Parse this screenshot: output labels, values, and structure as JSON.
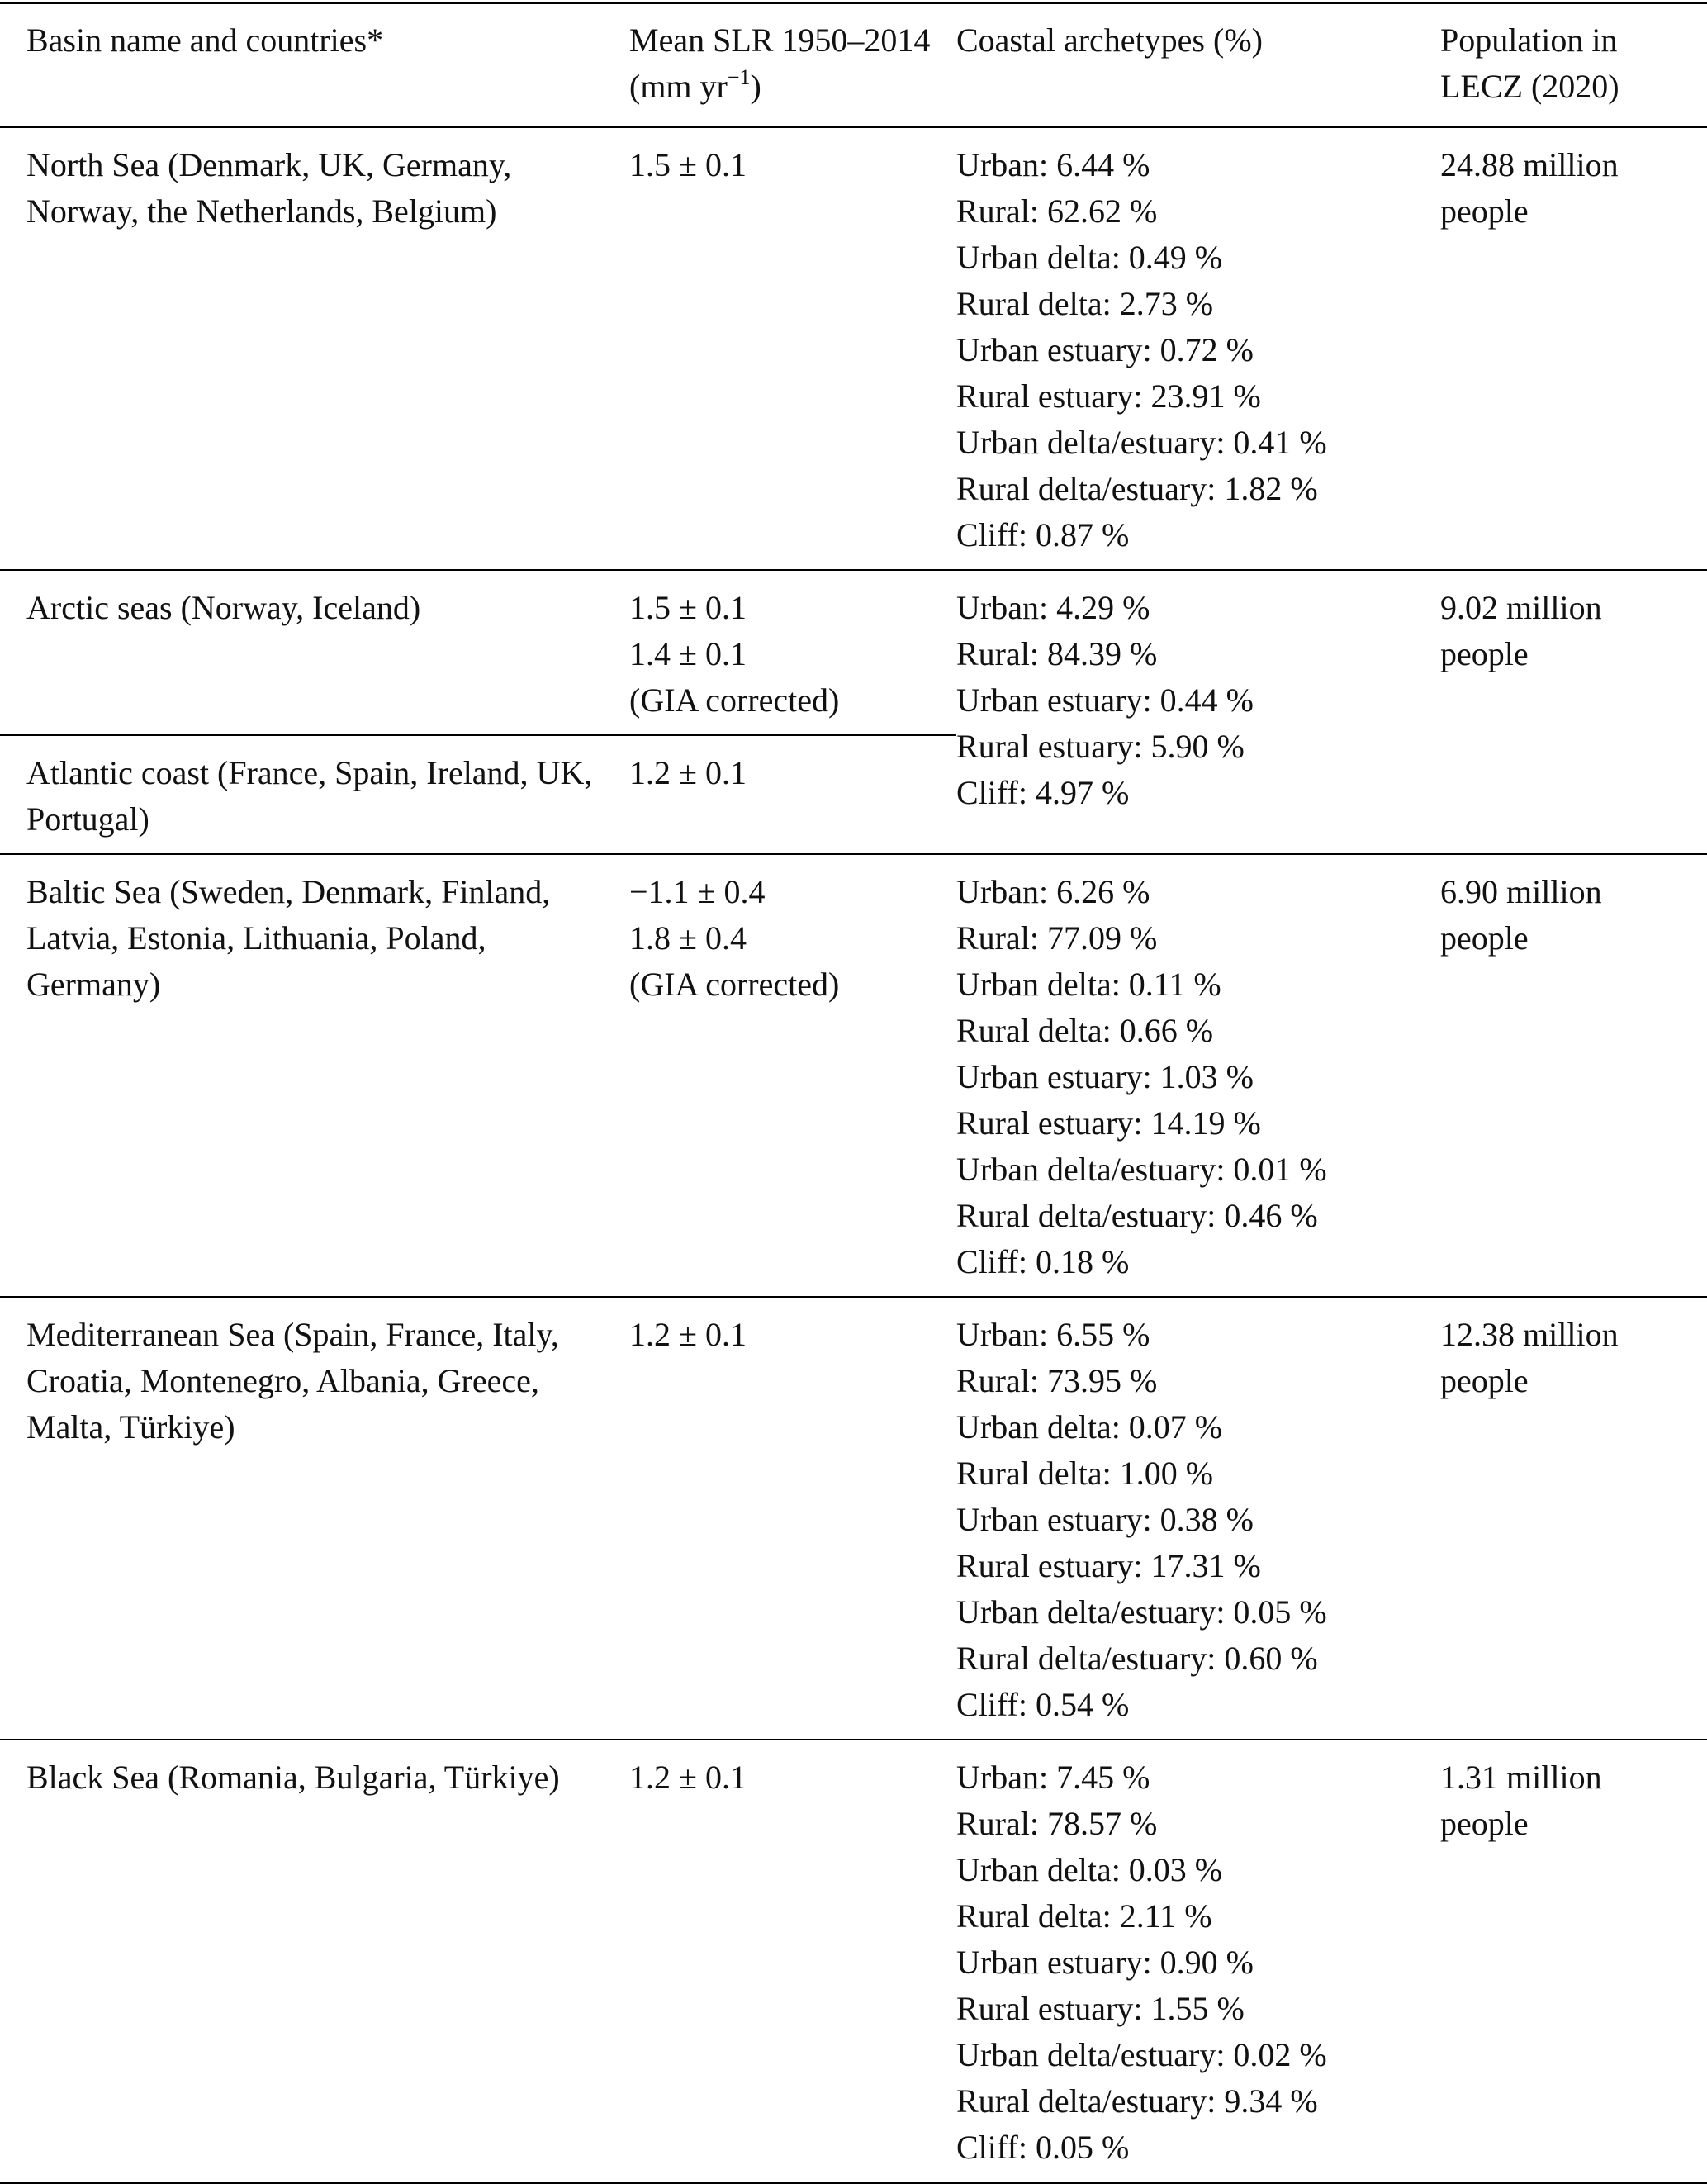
{
  "table": {
    "header": {
      "basin": "Basin name and countries*",
      "slr": {
        "text": "Mean SLR 1950–2014 (mm yr",
        "sup": "−1",
        "tail": ")"
      },
      "archetypes": "Coastal archetypes (%)",
      "population": "Population in LECZ (2020)"
    },
    "rows": [
      {
        "basin": "North Sea (Denmark, UK, Germany, Norway, the Netherlands, Belgium)",
        "slr": [
          "1.5 ± 0.1"
        ],
        "archetypes": [
          "Urban: 6.44 %",
          "Rural: 62.62 %",
          "Urban delta: 0.49 %",
          "Rural delta: 2.73 %",
          "Urban estuary: 0.72 %",
          "Rural estuary: 23.91 %",
          "Urban delta/estuary: 0.41 %",
          "Rural delta/estuary: 1.82 %",
          "Cliff: 0.87 %"
        ],
        "population": "24.88 million people"
      },
      {
        "basin": "Arctic seas (Norway, Iceland)",
        "slr": [
          "1.5 ± 0.1",
          "1.4 ± 0.1",
          "(GIA corrected)"
        ],
        "archetypes": [
          "Urban: 4.29 %",
          "Rural: 84.39 %",
          "Urban estuary: 0.44 %",
          "Rural estuary: 5.90 %",
          "Cliff: 4.97 %"
        ],
        "population": "9.02 million people"
      },
      {
        "basin": "Atlantic coast (France, Spain, Ireland, UK, Portugal)",
        "slr": [
          "1.2 ± 0.1"
        ]
      },
      {
        "basin": "Baltic Sea (Sweden, Denmark, Finland, Latvia, Estonia, Lithuania, Poland, Germany)",
        "slr": [
          "−1.1 ± 0.4",
          "1.8 ± 0.4",
          "(GIA corrected)"
        ],
        "archetypes": [
          "Urban: 6.26 %",
          "Rural: 77.09 %",
          "Urban delta: 0.11 %",
          "Rural delta: 0.66 %",
          "Urban estuary: 1.03 %",
          "Rural estuary: 14.19 %",
          "Urban delta/estuary: 0.01 %",
          "Rural delta/estuary: 0.46 %",
          "Cliff: 0.18 %"
        ],
        "population": "6.90 million people"
      },
      {
        "basin": "Mediterranean Sea (Spain, France, Italy, Croatia, Montenegro, Albania, Greece, Malta, Türkiye)",
        "slr": [
          "1.2 ± 0.1"
        ],
        "archetypes": [
          "Urban: 6.55 %",
          "Rural: 73.95 %",
          "Urban delta: 0.07 %",
          "Rural delta: 1.00 %",
          "Urban estuary: 0.38 %",
          "Rural estuary: 17.31 %",
          "Urban delta/estuary: 0.05 %",
          "Rural delta/estuary: 0.60 %",
          "Cliff: 0.54 %"
        ],
        "population": "12.38 million people"
      },
      {
        "basin": "Black Sea (Romania, Bulgaria, Türkiye)",
        "slr": [
          "1.2 ± 0.1"
        ],
        "archetypes": [
          "Urban: 7.45 %",
          "Rural: 78.57 %",
          "Urban delta: 0.03 %",
          "Rural delta: 2.11 %",
          "Urban estuary: 0.90 %",
          "Rural estuary: 1.55 %",
          "Urban delta/estuary: 0.02 %",
          "Rural delta/estuary: 9.34 %",
          "Cliff: 0.05 %"
        ],
        "population": "1.31 million people"
      }
    ]
  }
}
